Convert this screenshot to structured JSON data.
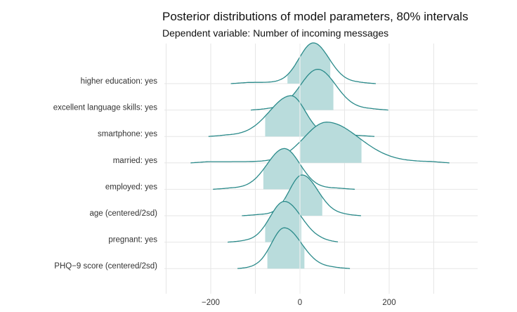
{
  "chart_data": {
    "type": "ridgeline",
    "title": "Posterior distributions of model parameters, 80% intervals",
    "subtitle": "Dependent variable: Number of incoming messages",
    "xlabel": "",
    "ylabel": "",
    "xlim": [
      -300,
      395
    ],
    "x_ticks": [
      -200,
      0,
      200
    ],
    "x_tick_labels": [
      "−200",
      "0",
      "200"
    ],
    "grid": true,
    "colors": {
      "line": "#2a8a8a",
      "fill": "#b9dcdc",
      "grid": "#e6e6e6"
    },
    "parameters": [
      {
        "label": "higher education: yes",
        "mode": 30,
        "sd_left": 20,
        "sd_right": 22,
        "range": [
          -155,
          170
        ],
        "ci80": [
          -28,
          68
        ]
      },
      {
        "label": "excellent language skills: yes",
        "mode": 40,
        "sd_left": 24,
        "sd_right": 25,
        "range": [
          -110,
          198
        ],
        "ci80": [
          -15,
          75
        ]
      },
      {
        "label": "smartphone: yes",
        "mode": -20,
        "sd_left": 30,
        "sd_right": 20,
        "range": [
          -205,
          167
        ],
        "ci80": [
          -78,
          33
        ]
      },
      {
        "label": "married: yes",
        "mode": 60,
        "sd_left": 32,
        "sd_right": 45,
        "range": [
          -245,
          335
        ],
        "ci80": [
          0,
          138
        ]
      },
      {
        "label": "employed: yes",
        "mode": -35,
        "sd_left": 24,
        "sd_right": 22,
        "range": [
          -195,
          123
        ],
        "ci80": [
          -82,
          6
        ]
      },
      {
        "label": "age (centered/2sd)",
        "mode": 5,
        "sd_left": 18,
        "sd_right": 22,
        "range": [
          -130,
          137
        ],
        "ci80": [
          -33,
          50
        ]
      },
      {
        "label": "pregnant: yes",
        "mode": -35,
        "sd_left": 20,
        "sd_right": 24,
        "range": [
          -162,
          85
        ],
        "ci80": [
          -78,
          3
        ]
      },
      {
        "label": "PHQ−9 score (centered/2sd)",
        "mode": -35,
        "sd_left": 18,
        "sd_right": 24,
        "range": [
          -140,
          112
        ],
        "ci80": [
          -73,
          10
        ]
      }
    ]
  }
}
